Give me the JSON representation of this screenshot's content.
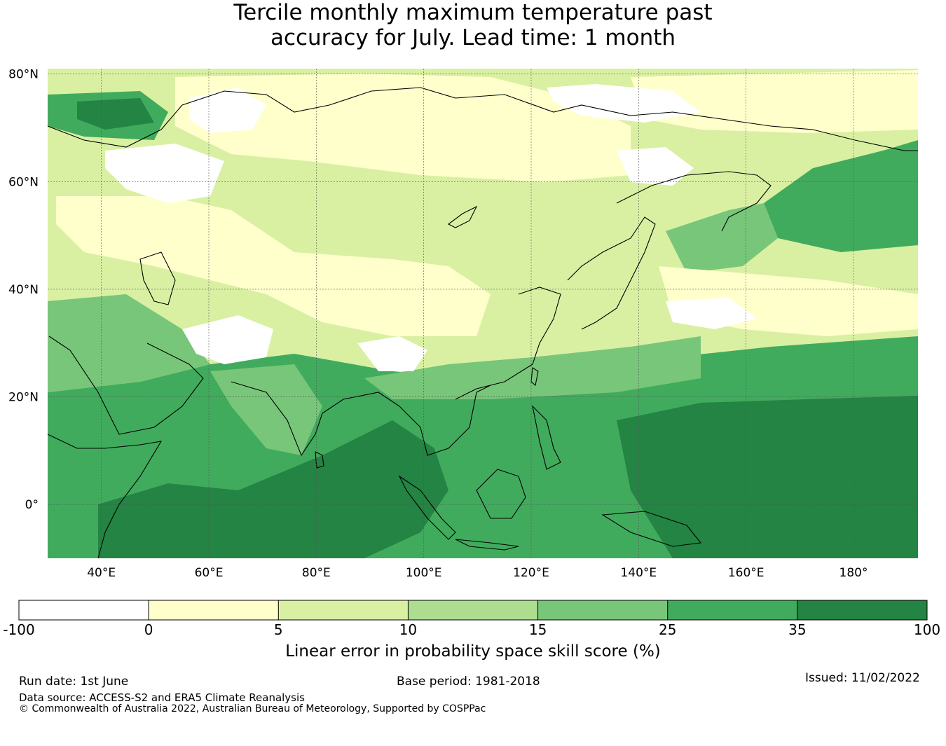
{
  "title_line1": "Tercile monthly maximum temperature past",
  "title_line2": "accuracy for July. Lead time: 1 month",
  "map": {
    "lat_ticks": [
      "80°N",
      "60°N",
      "40°N",
      "20°N",
      "0°"
    ],
    "lon_ticks": [
      "40°E",
      "60°E",
      "80°E",
      "100°E",
      "120°E",
      "140°E",
      "160°E",
      "180°"
    ],
    "lat_values": [
      80,
      60,
      40,
      20,
      0
    ],
    "lon_values": [
      40,
      60,
      80,
      100,
      120,
      140,
      160,
      180
    ],
    "extent": {
      "lon_min": 30,
      "lon_max": 192,
      "lat_min": -10,
      "lat_max": 81
    }
  },
  "colorbar": {
    "label": "Linear error in probability space skill score (%)",
    "ticks": [
      "-100",
      "0",
      "5",
      "10",
      "15",
      "25",
      "35",
      "100"
    ],
    "colors": [
      "#ffffff",
      "#ffffcc",
      "#d9f0a3",
      "#addd8e",
      "#78c679",
      "#41ab5d",
      "#238443"
    ]
  },
  "footer": {
    "run_date": "Run date: 1st June",
    "base_period": "Base period: 1981-2018",
    "issued": "Issued: 11/02/2022",
    "data_source": "Data source: ACCESS-S2 and ERA5 Climate Reanalysis",
    "copyright": "© Commonwealth of Australia 2022, Australian Bureau of Meteorology, Supported by COSPPac"
  }
}
